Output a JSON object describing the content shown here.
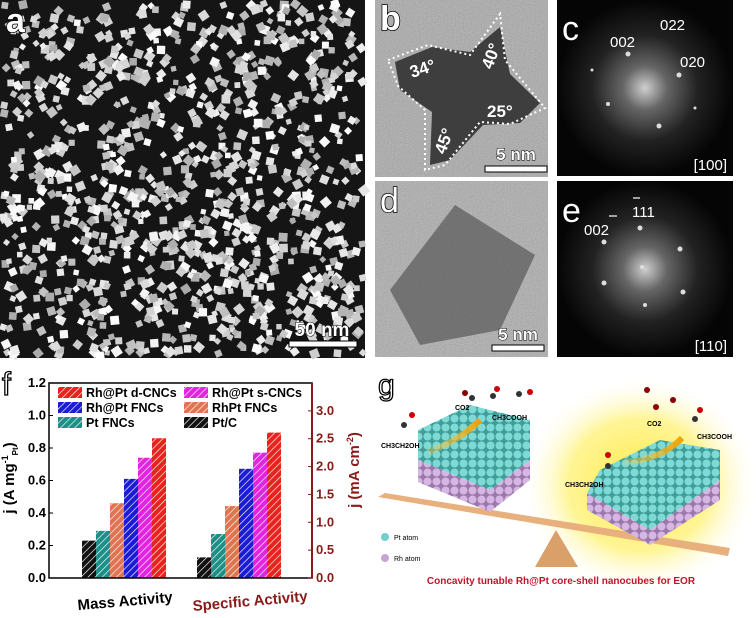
{
  "panels": {
    "a": {
      "label": "a",
      "scale_bar": "50 nm"
    },
    "b": {
      "label": "b",
      "angles": [
        "34°",
        "40°",
        "25°",
        "45°"
      ],
      "scale_bar": "5 nm"
    },
    "c": {
      "label": "c",
      "spots": [
        "002",
        "022",
        "020"
      ],
      "zone_axis": "[100]"
    },
    "d": {
      "label": "d",
      "scale_bar": "5 nm"
    },
    "e": {
      "label": "e",
      "spots": [
        "002",
        "111"
      ],
      "overbar_marks": [
        "2",
        "1"
      ],
      "zone_axis": "[110]"
    },
    "f": {
      "label": "f"
    },
    "g": {
      "label": "g",
      "molecules": {
        "co2_left": "CO2",
        "acid_left": "CH3COOH",
        "ethanol_left": "CH3CH2OH",
        "co2_right": "CO2",
        "acid_right": "CH3COOH",
        "ethanol_right": "CH3CH2OH"
      },
      "legend": {
        "pt": "Pt atom",
        "rh": "Rh atom"
      },
      "caption": "Concavity tunable Rh@Pt core-shell nanocubes for EOR",
      "colors": {
        "pt": "#6fd0cc",
        "rh": "#c9a3d6",
        "plank": "#e8b07c",
        "caption": "#c0142a",
        "glow": "#ffe840"
      }
    }
  },
  "chart_data": {
    "type": "bar",
    "categories": [
      "Mass Activity",
      "Specific Activity"
    ],
    "series": [
      {
        "name": "Pt/C",
        "color": "#111111",
        "values": [
          0.23,
          0.37
        ]
      },
      {
        "name": "Pt FNCs",
        "color": "#1e8f87",
        "values": [
          0.29,
          0.79
        ]
      },
      {
        "name": "RhPt FNCs",
        "color": "#e07352",
        "values": [
          0.46,
          1.29
        ]
      },
      {
        "name": "Rh@Pt FNCs",
        "color": "#1c1cd4",
        "values": [
          0.61,
          1.96
        ]
      },
      {
        "name": "Rh@Pt s-CNCs",
        "color": "#e024e0",
        "values": [
          0.74,
          2.25
        ]
      },
      {
        "name": "Rh@Pt d-CNCs",
        "color": "#e8221e",
        "values": [
          0.86,
          2.61
        ]
      }
    ],
    "legend_order": [
      "Rh@Pt d-CNCs",
      "Rh@Pt s-CNCs",
      "Rh@Pt FNCs",
      "RhPt FNCs",
      "Pt FNCs",
      "Pt/C"
    ],
    "ylabel_left": {
      "main": "j (A mg",
      "sup": "-1",
      "sub": "Pt",
      "close": ")"
    },
    "ylabel_right": {
      "main": "j (mA cm",
      "sup": "-2",
      "close": ")"
    },
    "ylim_left": [
      0,
      1.2
    ],
    "ylim_right": [
      0,
      3.5
    ],
    "yticks_left": [
      "0.0",
      "0.2",
      "0.4",
      "0.6",
      "0.8",
      "1.0",
      "1.2"
    ],
    "yticks_right": [
      "0.0",
      "0.5",
      "1.0",
      "1.5",
      "2.0",
      "2.5",
      "3.0"
    ],
    "notes": "Mass Activity read on left axis, Specific Activity on right axis; bars hatched",
    "legend_position": "top",
    "right_axis_color": "#8b1a1a",
    "grid": false
  }
}
